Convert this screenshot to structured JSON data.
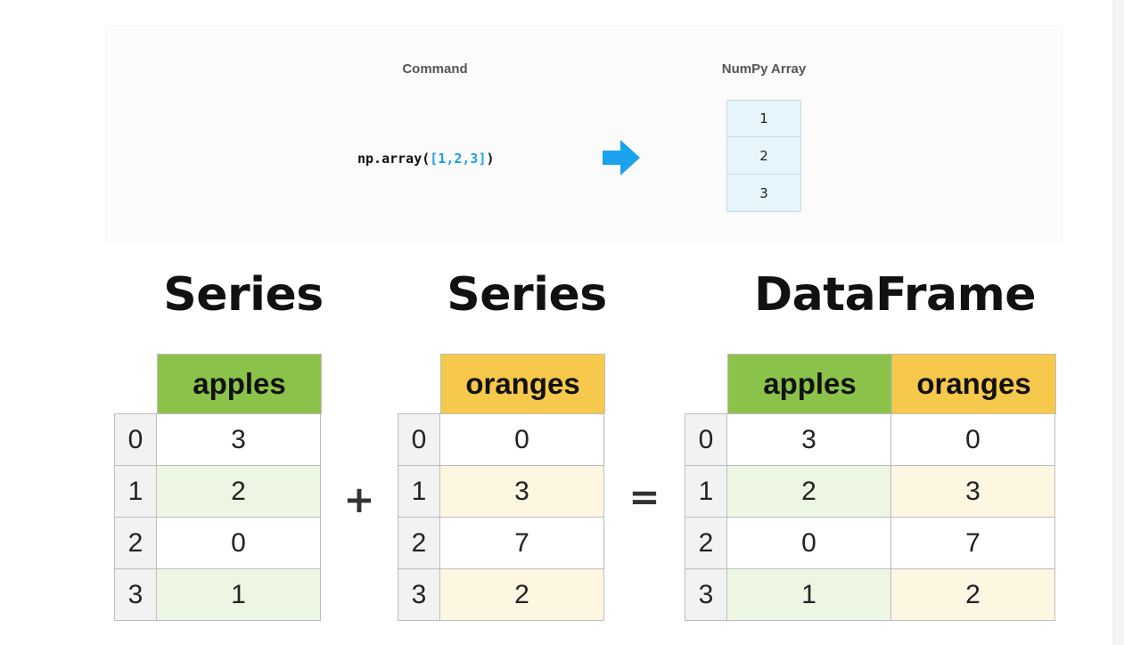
{
  "numpy_panel": {
    "command_header": "Command",
    "array_header": "NumPy Array",
    "command_prefix": "np.array(",
    "command_arg": "[1,2,3]",
    "command_suffix": ")",
    "arrow_icon": "right-arrow-icon",
    "arrow_color": "#1aa3ec",
    "array_values": [
      "1",
      "2",
      "3"
    ]
  },
  "titles": {
    "series_1": "Series",
    "series_2": "Series",
    "dataframe": "DataFrame"
  },
  "operators": {
    "plus": "+",
    "equals": "="
  },
  "series_apples": {
    "header": "apples",
    "index": [
      "0",
      "1",
      "2",
      "3"
    ],
    "values": [
      "3",
      "2",
      "0",
      "1"
    ]
  },
  "series_oranges": {
    "header": "oranges",
    "index": [
      "0",
      "1",
      "2",
      "3"
    ],
    "values": [
      "0",
      "3",
      "7",
      "2"
    ]
  },
  "dataframe": {
    "headers": [
      "apples",
      "oranges"
    ],
    "index": [
      "0",
      "1",
      "2",
      "3"
    ],
    "rows": [
      [
        "3",
        "0"
      ],
      [
        "2",
        "3"
      ],
      [
        "0",
        "7"
      ],
      [
        "1",
        "2"
      ]
    ]
  },
  "colors": {
    "apples_header": "#8bc34a",
    "oranges_header": "#f6c84b",
    "apples_alt_row": "#edf5e3",
    "oranges_alt_row": "#fdf6e1",
    "index_cell": "#f2f2f2",
    "numpy_cell": "#e6f4fb",
    "command_arg": "#1da1e6"
  }
}
